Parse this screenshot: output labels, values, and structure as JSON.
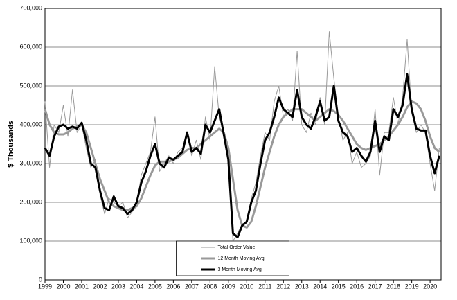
{
  "chart_data": {
    "type": "line",
    "ylabel": "$ Thousands",
    "x": [
      1999,
      1999.25,
      1999.5,
      1999.75,
      2000,
      2000.25,
      2000.5,
      2000.75,
      2001,
      2001.25,
      2001.5,
      2001.75,
      2002,
      2002.25,
      2002.5,
      2002.75,
      2003,
      2003.25,
      2003.5,
      2003.75,
      2004,
      2004.25,
      2004.5,
      2004.75,
      2005,
      2005.25,
      2005.5,
      2005.75,
      2006,
      2006.25,
      2006.5,
      2006.75,
      2007,
      2007.25,
      2007.5,
      2007.75,
      2008,
      2008.25,
      2008.5,
      2008.75,
      2009,
      2009.25,
      2009.5,
      2009.75,
      2010,
      2010.25,
      2010.5,
      2010.75,
      2011,
      2011.25,
      2011.5,
      2011.75,
      2012,
      2012.25,
      2012.5,
      2012.75,
      2013,
      2013.25,
      2013.5,
      2013.75,
      2014,
      2014.25,
      2014.5,
      2014.75,
      2015,
      2015.25,
      2015.5,
      2015.75,
      2016,
      2016.25,
      2016.5,
      2016.75,
      2017,
      2017.25,
      2017.5,
      2017.75,
      2018,
      2018.25,
      2018.5,
      2018.75,
      2019,
      2019.25,
      2019.5,
      2019.75,
      2020,
      2020.25,
      2020.5
    ],
    "series": [
      {
        "name": "Total Order Value",
        "color": "#999999",
        "width": 1,
        "values": [
          460000,
          290000,
          400000,
          380000,
          450000,
          370000,
          490000,
          380000,
          400000,
          340000,
          290000,
          310000,
          220000,
          170000,
          210000,
          200000,
          190000,
          200000,
          160000,
          175000,
          190000,
          270000,
          300000,
          330000,
          420000,
          280000,
          300000,
          320000,
          300000,
          330000,
          340000,
          380000,
          320000,
          360000,
          310000,
          420000,
          360000,
          550000,
          420000,
          380000,
          300000,
          100000,
          120000,
          145000,
          145000,
          210000,
          250000,
          320000,
          380000,
          360000,
          460000,
          500000,
          420000,
          440000,
          410000,
          590000,
          400000,
          380000,
          430000,
          400000,
          470000,
          400000,
          640000,
          520000,
          420000,
          360000,
          380000,
          300000,
          330000,
          290000,
          300000,
          320000,
          440000,
          270000,
          380000,
          380000,
          470000,
          400000,
          470000,
          620000,
          430000,
          380000,
          400000,
          380000,
          300000,
          230000,
          340000
        ]
      },
      {
        "name": "12 Month Moving Avg",
        "color": "#999999",
        "width": 3,
        "values": [
          440000,
          400000,
          380000,
          375000,
          375000,
          380000,
          390000,
          395000,
          400000,
          380000,
          340000,
          300000,
          260000,
          230000,
          200000,
          190000,
          185000,
          180000,
          180000,
          185000,
          190000,
          210000,
          240000,
          270000,
          295000,
          305000,
          305000,
          305000,
          310000,
          315000,
          325000,
          335000,
          340000,
          340000,
          350000,
          360000,
          370000,
          380000,
          390000,
          380000,
          340000,
          260000,
          180000,
          140000,
          135000,
          150000,
          190000,
          240000,
          290000,
          330000,
          370000,
          400000,
          420000,
          430000,
          440000,
          440000,
          440000,
          430000,
          420000,
          410000,
          420000,
          430000,
          440000,
          435000,
          425000,
          410000,
          390000,
          370000,
          350000,
          340000,
          335000,
          340000,
          345000,
          350000,
          360000,
          370000,
          385000,
          400000,
          420000,
          445000,
          460000,
          455000,
          440000,
          410000,
          370000,
          340000,
          330000
        ]
      },
      {
        "name": "3 Month Moving Avg",
        "color": "#000000",
        "width": 3,
        "values": [
          340000,
          320000,
          370000,
          395000,
          400000,
          390000,
          395000,
          390000,
          405000,
          360000,
          300000,
          290000,
          230000,
          185000,
          180000,
          215000,
          190000,
          185000,
          170000,
          180000,
          200000,
          250000,
          280000,
          320000,
          350000,
          300000,
          290000,
          315000,
          310000,
          320000,
          330000,
          380000,
          330000,
          340000,
          325000,
          400000,
          380000,
          410000,
          440000,
          375000,
          310000,
          120000,
          110000,
          140000,
          150000,
          200000,
          230000,
          300000,
          360000,
          380000,
          420000,
          470000,
          440000,
          430000,
          420000,
          490000,
          420000,
          400000,
          390000,
          420000,
          460000,
          410000,
          420000,
          500000,
          410000,
          380000,
          370000,
          330000,
          340000,
          320000,
          305000,
          330000,
          410000,
          330000,
          370000,
          360000,
          440000,
          420000,
          450000,
          530000,
          440000,
          390000,
          385000,
          385000,
          320000,
          275000,
          320000
        ]
      }
    ],
    "xlim": [
      1999,
      2020.6
    ],
    "xticks": [
      1999,
      2000,
      2001,
      2002,
      2003,
      2004,
      2005,
      2006,
      2007,
      2008,
      2009,
      2010,
      2011,
      2012,
      2013,
      2014,
      2015,
      2016,
      2017,
      2018,
      2019,
      2020
    ],
    "ylim": [
      0,
      700000
    ],
    "yticks": [
      0,
      {
        "value": 100000,
        "label": "100,000"
      },
      {
        "value": 200000,
        "label": "200,000"
      },
      {
        "value": 300000,
        "label": "300,000"
      },
      {
        "value": 400000,
        "label": "400,000"
      },
      {
        "value": 500000,
        "label": "500,000"
      },
      {
        "value": 600000,
        "label": "600,000"
      },
      {
        "value": 700000,
        "label": "700,000"
      }
    ],
    "grid": true,
    "legend_position": "bottom-center"
  }
}
